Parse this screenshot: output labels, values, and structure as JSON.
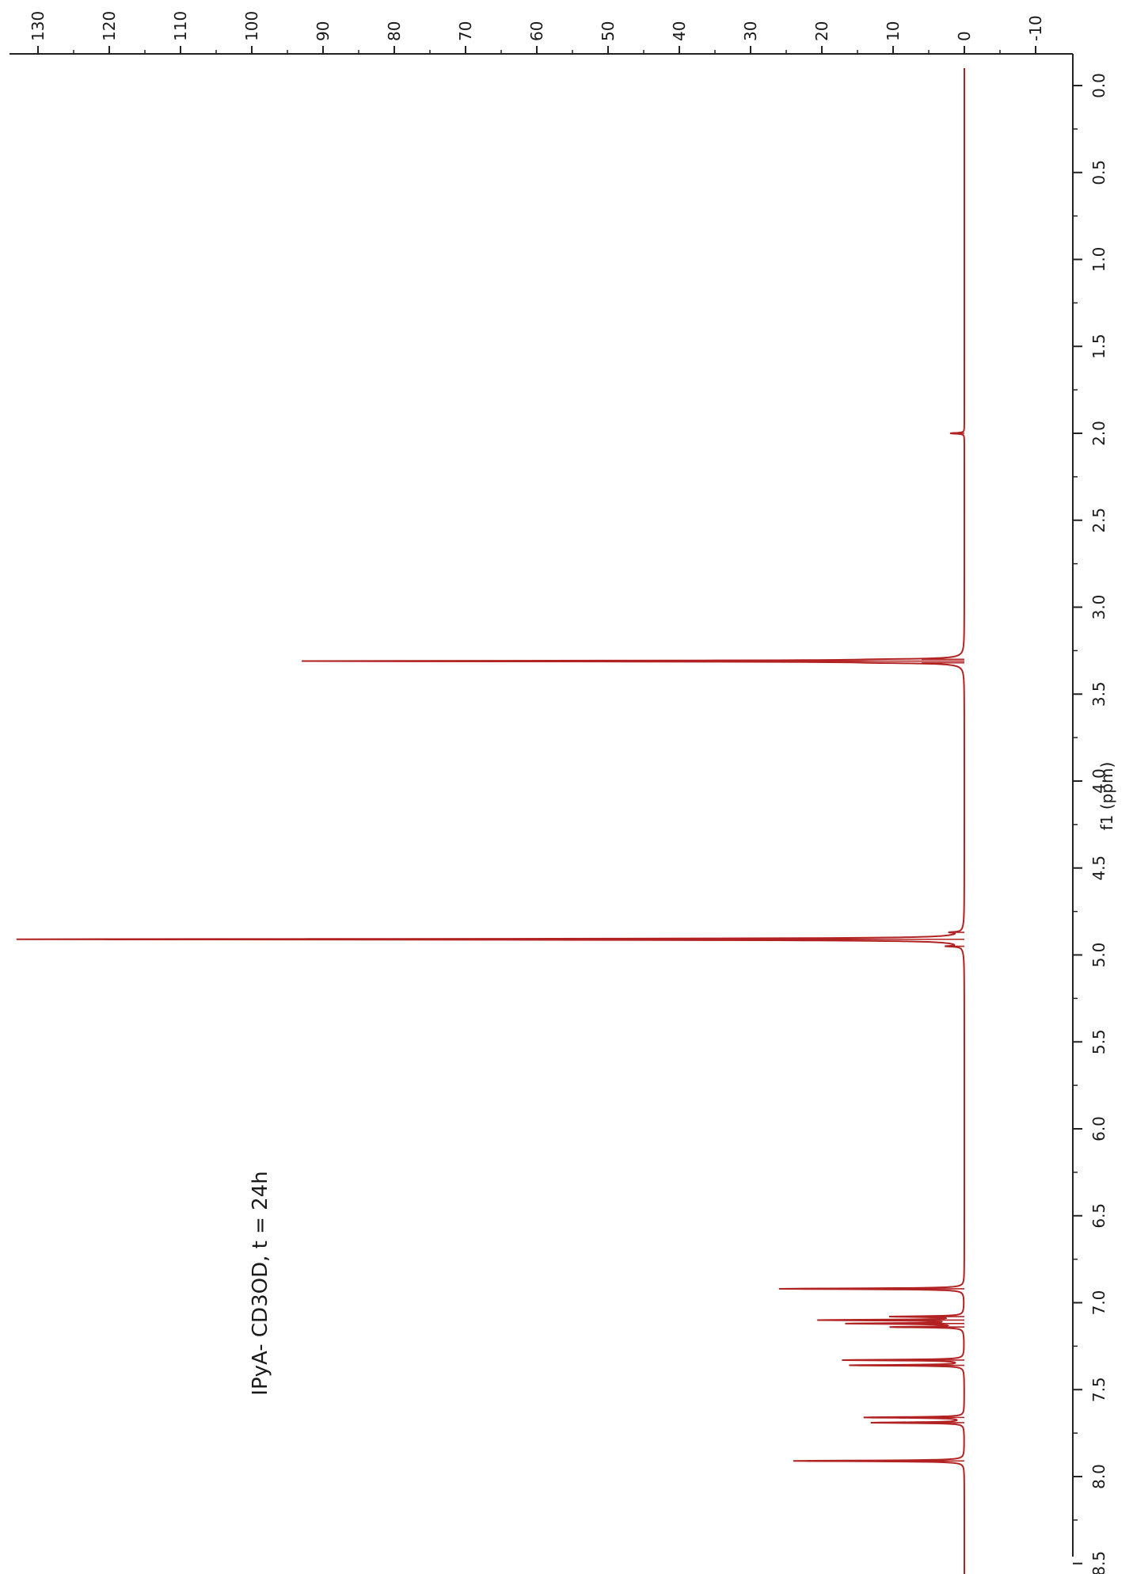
{
  "chart_data": {
    "type": "line",
    "orientation": "rotated-90",
    "title": "",
    "annotation": "IPyA- CD3OD, t = 24h",
    "xlabel": "f1 (ppm)",
    "ylabel": "",
    "xlim": [
      -0.1,
      8.6
    ],
    "ylim": [
      -10,
      130
    ],
    "x_ticks": [
      "0.0",
      "0.5",
      "1.0",
      "1.5",
      "2.0",
      "2.5",
      "3.0",
      "3.5",
      "4.0",
      "4.5",
      "5.0",
      "5.5",
      "6.0",
      "6.5",
      "7.0",
      "7.5",
      "8.0",
      "8.5"
    ],
    "y_ticks": [
      "-10",
      "0",
      "10",
      "20",
      "30",
      "40",
      "50",
      "60",
      "70",
      "80",
      "90",
      "100",
      "110",
      "120",
      "130"
    ],
    "grid": false,
    "series": [
      {
        "color": "#b22222",
        "peaks": [
          {
            "x": 2.0,
            "y": 2
          },
          {
            "x": 3.3,
            "y": 6
          },
          {
            "x": 3.31,
            "y": 92
          },
          {
            "x": 3.32,
            "y": 6
          },
          {
            "x": 4.87,
            "y": 1.5
          },
          {
            "x": 4.91,
            "y": 133
          },
          {
            "x": 4.95,
            "y": 2
          },
          {
            "x": 6.92,
            "y": 26
          },
          {
            "x": 7.08,
            "y": 10
          },
          {
            "x": 7.1,
            "y": 20
          },
          {
            "x": 7.12,
            "y": 16
          },
          {
            "x": 7.14,
            "y": 10
          },
          {
            "x": 7.33,
            "y": 17
          },
          {
            "x": 7.36,
            "y": 16
          },
          {
            "x": 7.66,
            "y": 14
          },
          {
            "x": 7.69,
            "y": 13
          },
          {
            "x": 7.91,
            "y": 24
          }
        ]
      }
    ]
  }
}
